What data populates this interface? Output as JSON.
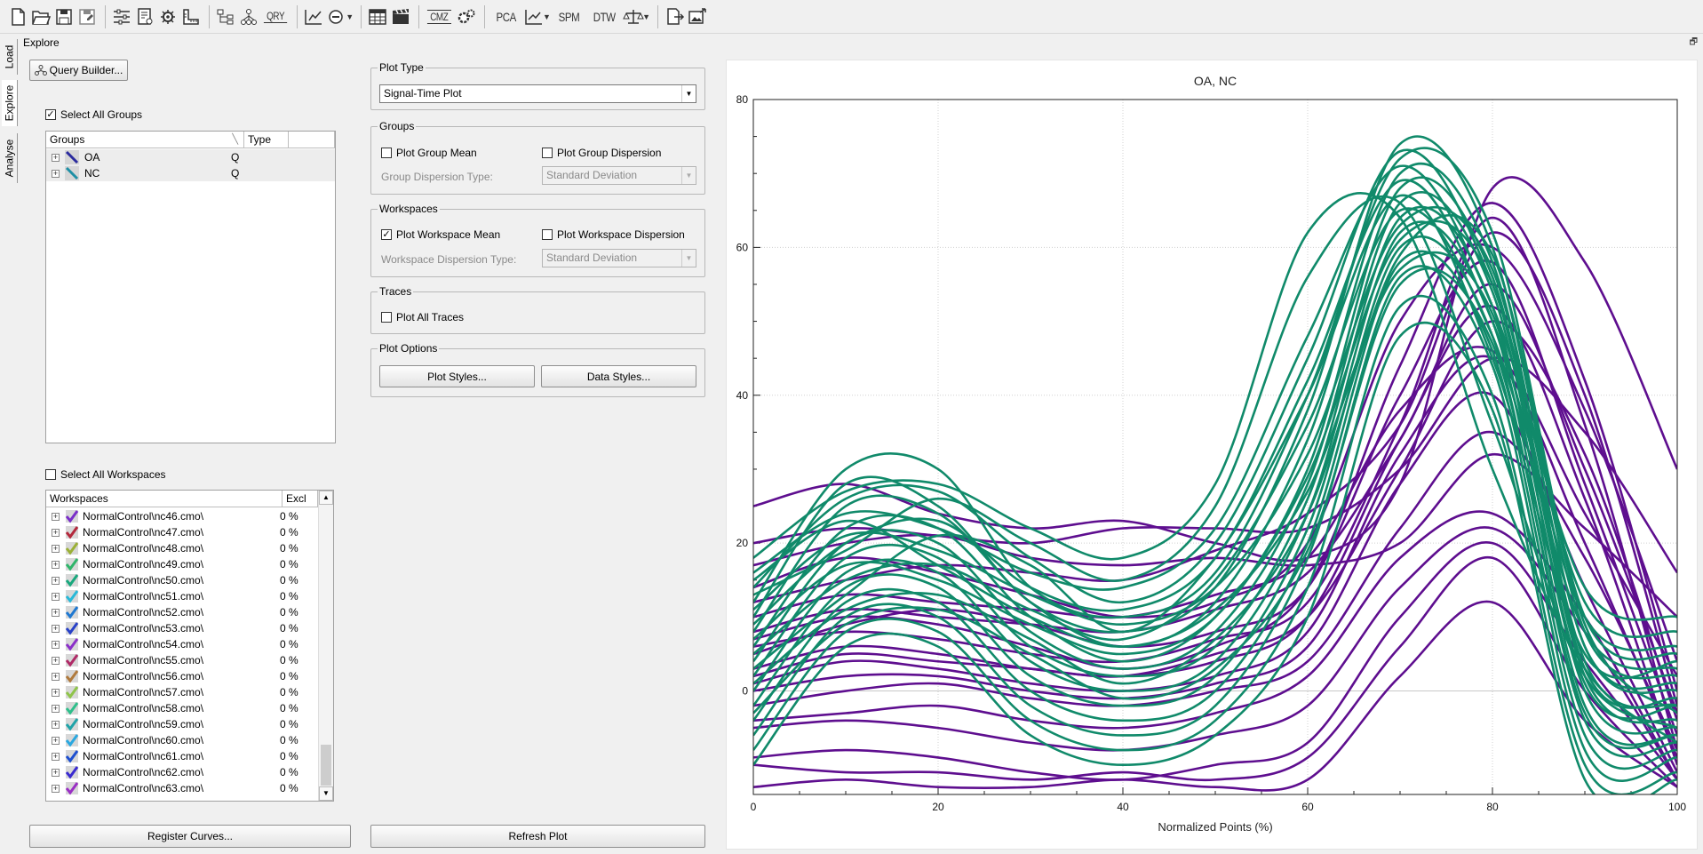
{
  "toolbar": {
    "icons": [
      "new-file-icon",
      "open-folder-icon",
      "save-icon",
      "save-as-icon",
      "settings-sliders-icon",
      "document-settings-icon",
      "gear-options-icon",
      "ruler-icon",
      "tree-hierarchy-icon",
      "network-icon",
      "query-icon",
      "chart-edit-icon",
      "no-entry-icon",
      "grid-table-icon",
      "clapper-icon",
      "cmz-icon",
      "gears-icon",
      "chart-line-icon",
      "balance-icon",
      "export-icon",
      "image-export-icon"
    ],
    "labels": {
      "qry": "QRY",
      "cmz": "CMZ",
      "pca": "PCA",
      "spm": "SPM",
      "dtw": "DTW"
    }
  },
  "sidetabs": [
    "Load",
    "Explore",
    "Analyse"
  ],
  "panel_title": "Explore",
  "query_builder_label": "Query Builder...",
  "select_all_groups": {
    "label": "Select All Groups",
    "checked": true
  },
  "groups_tree": {
    "columns": [
      "Groups",
      "Type"
    ],
    "rows": [
      {
        "name": "OA",
        "type": "Q",
        "color": "#2b2b9e"
      },
      {
        "name": "NC",
        "type": "Q",
        "color": "#1e8fa5"
      }
    ]
  },
  "select_all_workspaces": {
    "label": "Select All Workspaces",
    "checked": false
  },
  "workspaces_tree": {
    "columns": [
      "Workspaces",
      "Excl"
    ],
    "rows": [
      {
        "name": "NormalControl\\nc46.cmo\\",
        "excl": "0 %",
        "color": "#7a2fc9"
      },
      {
        "name": "NormalControl\\nc47.cmo\\",
        "excl": "0 %",
        "color": "#b3283c"
      },
      {
        "name": "NormalControl\\nc48.cmo\\",
        "excl": "0 %",
        "color": "#9bb037"
      },
      {
        "name": "NormalControl\\nc49.cmo\\",
        "excl": "0 %",
        "color": "#2fb56a"
      },
      {
        "name": "NormalControl\\nc50.cmo\\",
        "excl": "0 %",
        "color": "#19a87d"
      },
      {
        "name": "NormalControl\\nc51.cmo\\",
        "excl": "0 %",
        "color": "#28b9d8"
      },
      {
        "name": "NormalControl\\nc52.cmo\\",
        "excl": "0 %",
        "color": "#1f78d1"
      },
      {
        "name": "NormalControl\\nc53.cmo\\",
        "excl": "0 %",
        "color": "#2841c8"
      },
      {
        "name": "NormalControl\\nc54.cmo\\",
        "excl": "0 %",
        "color": "#8b2fc9"
      },
      {
        "name": "NormalControl\\nc55.cmo\\",
        "excl": "0 %",
        "color": "#b02a67"
      },
      {
        "name": "NormalControl\\nc56.cmo\\",
        "excl": "0 %",
        "color": "#b07a3c"
      },
      {
        "name": "NormalControl\\nc57.cmo\\",
        "excl": "0 %",
        "color": "#8fc44a"
      },
      {
        "name": "NormalControl\\nc58.cmo\\",
        "excl": "0 %",
        "color": "#2ebf8b"
      },
      {
        "name": "NormalControl\\nc59.cmo\\",
        "excl": "0 %",
        "color": "#1fa3a8"
      },
      {
        "name": "NormalControl\\nc60.cmo\\",
        "excl": "0 %",
        "color": "#2aa8e0"
      },
      {
        "name": "NormalControl\\nc61.cmo\\",
        "excl": "0 %",
        "color": "#1d4fd0"
      },
      {
        "name": "NormalControl\\nc62.cmo\\",
        "excl": "0 %",
        "color": "#3a2bd0"
      },
      {
        "name": "NormalControl\\nc63.cmo\\",
        "excl": "0 %",
        "color": "#9a2fc4"
      }
    ]
  },
  "register_curves_label": "Register Curves...",
  "refresh_plot_label": "Refresh Plot",
  "plot_type": {
    "title": "Plot Type",
    "value": "Signal-Time Plot"
  },
  "groups_box": {
    "title": "Groups",
    "plot_mean": {
      "label": "Plot Group Mean",
      "checked": false
    },
    "plot_dispersion": {
      "label": "Plot Group Dispersion",
      "checked": false
    },
    "dispersion_type_label": "Group Dispersion Type:",
    "dispersion_type_value": "Standard Deviation"
  },
  "workspaces_box": {
    "title": "Workspaces",
    "plot_mean": {
      "label": "Plot Workspace Mean",
      "checked": true
    },
    "plot_dispersion": {
      "label": "Plot Workspace Dispersion",
      "checked": false
    },
    "dispersion_type_label": "Workspace Dispersion Type:",
    "dispersion_type_value": "Standard Deviation"
  },
  "traces_box": {
    "title": "Traces",
    "plot_all": {
      "label": "Plot All Traces",
      "checked": false
    }
  },
  "plot_options_box": {
    "title": "Plot Options",
    "plot_styles_label": "Plot Styles...",
    "data_styles_label": "Data Styles..."
  },
  "chart_data": {
    "type": "line",
    "title": "OA, NC",
    "xlabel": "Normalized Points (%)",
    "ylabel": "",
    "xlim": [
      0,
      100
    ],
    "ylim": [
      -14,
      80
    ],
    "xticks": [
      0,
      20,
      40,
      60,
      80,
      100
    ],
    "yticks": [
      0,
      20,
      40,
      60,
      80
    ],
    "grid": true,
    "colors": {
      "OA": "#5e0e8f",
      "NC": "#108a6a"
    },
    "x": [
      0,
      10,
      20,
      30,
      40,
      50,
      60,
      70,
      80,
      90,
      100
    ],
    "series": [
      {
        "group": "OA",
        "values": [
          25,
          28,
          24,
          22,
          23,
          20,
          18,
          28,
          68,
          58,
          30
        ]
      },
      {
        "group": "OA",
        "values": [
          17,
          20,
          21,
          18,
          17,
          18,
          17,
          20,
          32,
          22,
          10
        ]
      },
      {
        "group": "OA",
        "values": [
          12,
          15,
          17,
          16,
          15,
          19,
          24,
          36,
          62,
          40,
          -2
        ]
      },
      {
        "group": "OA",
        "values": [
          10,
          13,
          12,
          11,
          10,
          13,
          18,
          38,
          46,
          24,
          2
        ]
      },
      {
        "group": "OA",
        "values": [
          8,
          11,
          10,
          9,
          8,
          11,
          16,
          34,
          55,
          30,
          -3
        ]
      },
      {
        "group": "OA",
        "values": [
          6,
          8,
          7,
          5,
          4,
          7,
          12,
          36,
          64,
          36,
          -8
        ]
      },
      {
        "group": "OA",
        "values": [
          5,
          9,
          11,
          9,
          6,
          8,
          14,
          40,
          58,
          28,
          -6
        ]
      },
      {
        "group": "OA",
        "values": [
          3,
          6,
          5,
          3,
          2,
          4,
          10,
          34,
          52,
          26,
          -10
        ]
      },
      {
        "group": "OA",
        "values": [
          1,
          4,
          3,
          1,
          0,
          2,
          8,
          32,
          45,
          20,
          -9
        ]
      },
      {
        "group": "OA",
        "values": [
          0,
          2,
          2,
          0,
          -1,
          1,
          6,
          28,
          40,
          14,
          -11
        ]
      },
      {
        "group": "OA",
        "values": [
          -2,
          0,
          1,
          -1,
          -2,
          0,
          4,
          22,
          35,
          18,
          -8
        ]
      },
      {
        "group": "OA",
        "values": [
          -4,
          -3,
          -2,
          -4,
          -5,
          -3,
          2,
          18,
          24,
          10,
          -12
        ]
      },
      {
        "group": "OA",
        "values": [
          -5,
          -4,
          -5,
          -7,
          -8,
          -6,
          -2,
          14,
          22,
          8,
          -12
        ]
      },
      {
        "group": "OA",
        "values": [
          -9,
          -8,
          -9,
          -11,
          -12,
          -10,
          -7,
          10,
          20,
          4,
          -12
        ]
      },
      {
        "group": "OA",
        "values": [
          -10,
          -11,
          -11,
          -12,
          -11,
          -12,
          -9,
          6,
          18,
          0,
          -13
        ]
      },
      {
        "group": "OA",
        "values": [
          -13,
          -12,
          -13,
          -13,
          -12,
          -13,
          -12,
          2,
          12,
          -4,
          -13
        ]
      },
      {
        "group": "OA",
        "values": [
          20,
          22,
          21,
          20,
          22,
          22,
          22,
          30,
          45,
          35,
          16
        ]
      },
      {
        "group": "OA",
        "values": [
          14,
          18,
          16,
          13,
          10,
          12,
          20,
          50,
          60,
          38,
          4
        ]
      },
      {
        "group": "OA",
        "values": [
          7,
          10,
          9,
          6,
          3,
          6,
          14,
          44,
          66,
          42,
          0
        ]
      },
      {
        "group": "OA",
        "values": [
          2,
          5,
          4,
          3,
          2,
          5,
          10,
          30,
          50,
          32,
          -4
        ]
      },
      {
        "group": "NC",
        "values": [
          12,
          30,
          30,
          14,
          10,
          16,
          40,
          72,
          62,
          10,
          5
        ]
      },
      {
        "group": "NC",
        "values": [
          10,
          28,
          25,
          12,
          8,
          14,
          38,
          74,
          60,
          8,
          2
        ]
      },
      {
        "group": "NC",
        "values": [
          8,
          25,
          24,
          12,
          6,
          12,
          34,
          70,
          58,
          6,
          0
        ]
      },
      {
        "group": "NC",
        "values": [
          6,
          22,
          22,
          10,
          4,
          10,
          30,
          68,
          56,
          4,
          -2
        ]
      },
      {
        "group": "NC",
        "values": [
          4,
          20,
          20,
          8,
          3,
          8,
          28,
          66,
          54,
          2,
          -4
        ]
      },
      {
        "group": "NC",
        "values": [
          2,
          18,
          18,
          6,
          2,
          6,
          26,
          64,
          52,
          0,
          -5
        ]
      },
      {
        "group": "NC",
        "values": [
          0,
          16,
          16,
          4,
          0,
          4,
          24,
          62,
          50,
          -2,
          -6
        ]
      },
      {
        "group": "NC",
        "values": [
          -2,
          14,
          14,
          2,
          -2,
          2,
          22,
          60,
          48,
          -4,
          -7
        ]
      },
      {
        "group": "NC",
        "values": [
          -4,
          12,
          12,
          0,
          -4,
          0,
          20,
          58,
          46,
          -6,
          -8
        ]
      },
      {
        "group": "NC",
        "values": [
          -6,
          10,
          10,
          -2,
          -6,
          -2,
          18,
          56,
          44,
          -8,
          -9
        ]
      },
      {
        "group": "NC",
        "values": [
          14,
          26,
          27,
          18,
          12,
          20,
          45,
          73,
          55,
          12,
          8
        ]
      },
      {
        "group": "NC",
        "values": [
          16,
          24,
          22,
          16,
          14,
          22,
          48,
          71,
          52,
          14,
          10
        ]
      },
      {
        "group": "NC",
        "values": [
          9,
          20,
          23,
          14,
          11,
          18,
          42,
          69,
          50,
          10,
          6
        ]
      },
      {
        "group": "NC",
        "values": [
          5,
          15,
          17,
          11,
          7,
          15,
          36,
          65,
          48,
          8,
          3
        ]
      },
      {
        "group": "NC",
        "values": [
          -8,
          8,
          8,
          -4,
          -8,
          -4,
          14,
          52,
          40,
          -10,
          -11
        ]
      },
      {
        "group": "NC",
        "values": [
          -10,
          6,
          6,
          -6,
          -10,
          -6,
          10,
          48,
          38,
          -12,
          -12
        ]
      },
      {
        "group": "NC",
        "values": [
          11,
          21,
          19,
          13,
          9,
          14,
          32,
          63,
          57,
          6,
          1
        ]
      },
      {
        "group": "NC",
        "values": [
          7,
          17,
          15,
          9,
          5,
          10,
          29,
          61,
          55,
          3,
          -1
        ]
      },
      {
        "group": "NC",
        "values": [
          3,
          13,
          21,
          17,
          8,
          18,
          40,
          67,
          45,
          5,
          4
        ]
      },
      {
        "group": "NC",
        "values": [
          1,
          11,
          13,
          7,
          1,
          7,
          24,
          59,
          59,
          9,
          -3
        ]
      },
      {
        "group": "NC",
        "values": [
          13,
          19,
          26,
          20,
          15,
          25,
          56,
          66,
          36,
          2,
          -5
        ]
      },
      {
        "group": "NC",
        "values": [
          15,
          23,
          17,
          10,
          6,
          11,
          27,
          57,
          51,
          1,
          -2
        ]
      },
      {
        "group": "NC",
        "values": [
          -3,
          9,
          11,
          5,
          -1,
          3,
          19,
          55,
          47,
          -3,
          -6
        ]
      },
      {
        "group": "NC",
        "values": [
          18,
          27,
          28,
          22,
          18,
          28,
          62,
          64,
          30,
          3,
          -7
        ]
      }
    ]
  }
}
